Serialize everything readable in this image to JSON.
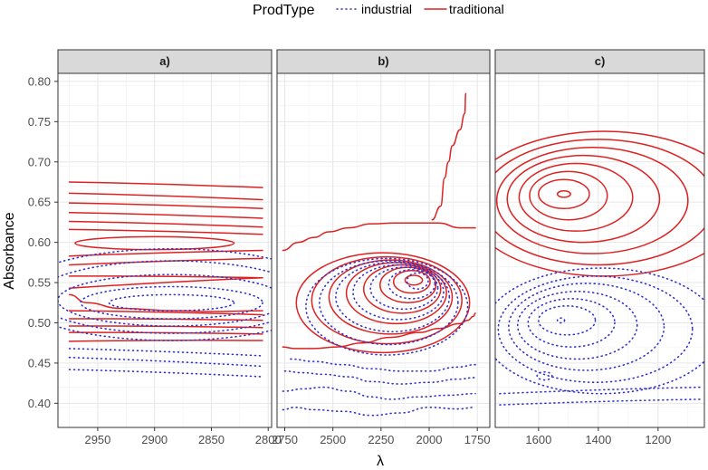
{
  "chart_data": {
    "type": "contour",
    "legend": {
      "title": "ProdType",
      "position": "top",
      "entries": [
        {
          "label": "industrial",
          "color": "#3333cc",
          "linetype": "dotted"
        },
        {
          "label": "traditional",
          "color": "#dd2222",
          "linetype": "solid"
        }
      ]
    },
    "xlabel": "λ",
    "ylabel": "Absorbance",
    "ylim": [
      0.37,
      0.81
    ],
    "y_ticks": [
      0.4,
      0.45,
      0.5,
      0.55,
      0.6,
      0.65,
      0.7,
      0.75,
      0.8
    ],
    "y_tick_labels": [
      "0.40",
      "0.45",
      "0.50",
      "0.55",
      "0.60",
      "0.65",
      "0.70",
      "0.75",
      "0.80"
    ],
    "panels": [
      {
        "title": "a)",
        "xlim": [
          2985,
          2797
        ],
        "x_ticks": [
          2950,
          2900,
          2850,
          2800
        ],
        "x_tick_labels": [
          "2950",
          "2900",
          "2850",
          "2800"
        ],
        "series": [
          {
            "name": "traditional",
            "contours": [
              {
                "shape": "band",
                "x": [
                  2975,
                  2805
                ],
                "y": [
                  0.675,
                  0.668
                ]
              },
              {
                "shape": "band",
                "x": [
                  2975,
                  2805
                ],
                "y": [
                  0.661,
                  0.653
                ]
              },
              {
                "shape": "band",
                "x": [
                  2975,
                  2805
                ],
                "y": [
                  0.649,
                  0.642
                ]
              },
              {
                "shape": "band",
                "x": [
                  2975,
                  2805
                ],
                "y": [
                  0.637,
                  0.63
                ]
              },
              {
                "shape": "band",
                "x": [
                  2975,
                  2805
                ],
                "y": [
                  0.626,
                  0.619
                ]
              },
              {
                "shape": "band",
                "x": [
                  2975,
                  2805
                ],
                "y": [
                  0.616,
                  0.61
                ]
              },
              {
                "shape": "band",
                "x": [
                  2975,
                  2805
                ],
                "y": [
                  0.583,
                  0.59
                ]
              },
              {
                "shape": "band",
                "x": [
                  2975,
                  2805
                ],
                "y": [
                  0.572,
                  0.58
                ]
              },
              {
                "shape": "band",
                "x": [
                  2975,
                  2805
                ],
                "y": [
                  0.558,
                  0.556
                ]
              },
              {
                "shape": "band",
                "x": [
                  2975,
                  2805
                ],
                "y": [
                  0.543,
                  0.556
                ]
              },
              {
                "shape": "band",
                "x": [
                  2975,
                  2805
                ],
                "y": [
                  0.515,
                  0.51
                ]
              },
              {
                "shape": "band",
                "x": [
                  2975,
                  2805
                ],
                "y": [
                  0.505,
                  0.503
                ]
              },
              {
                "shape": "band",
                "x": [
                  2975,
                  2805
                ],
                "y": [
                  0.496,
                  0.494
                ]
              },
              {
                "shape": "band",
                "x": [
                  2975,
                  2805
                ],
                "y": [
                  0.488,
                  0.486
                ]
              },
              {
                "shape": "band",
                "x": [
                  2975,
                  2805
                ],
                "y": [
                  0.477,
                  0.478
                ]
              },
              {
                "shape": "ring",
                "cx": 2900,
                "cy": 0.599,
                "rx": 70,
                "ry": 0.008
              },
              {
                "shape": "curve",
                "x": [
                  2975,
                  2960,
                  2930,
                  2880,
                  2850,
                  2805
                ],
                "y": [
                  0.535,
                  0.525,
                  0.518,
                  0.515,
                  0.514,
                  0.515
                ]
              }
            ]
          },
          {
            "name": "industrial",
            "contours": [
              {
                "shape": "band",
                "x": [
                  2975,
                  2805
                ],
                "y": [
                  0.442,
                  0.433
                ]
              },
              {
                "shape": "band",
                "x": [
                  2975,
                  2805
                ],
                "y": [
                  0.457,
                  0.446
                ]
              },
              {
                "shape": "band",
                "x": [
                  2975,
                  2805
                ],
                "y": [
                  0.468,
                  0.459
                ]
              },
              {
                "shape": "ring",
                "cx": 2885,
                "cy": 0.525,
                "rx": 55,
                "ry": 0.01
              },
              {
                "shape": "ring",
                "cx": 2885,
                "cy": 0.525,
                "rx": 80,
                "ry": 0.02
              },
              {
                "shape": "ring",
                "cx": 2885,
                "cy": 0.528,
                "rx": 100,
                "ry": 0.032
              },
              {
                "shape": "ring",
                "cx": 2885,
                "cy": 0.532,
                "rx": 120,
                "ry": 0.045
              },
              {
                "shape": "ring",
                "cx": 2885,
                "cy": 0.535,
                "rx": 140,
                "ry": 0.057
              }
            ]
          }
        ]
      },
      {
        "title": "b)",
        "xlim": [
          2790,
          1685
        ],
        "x_ticks": [
          2750,
          2500,
          2250,
          2000,
          1750
        ],
        "x_tick_labels": [
          "2750",
          "2500",
          "2250",
          "2000",
          "1750"
        ],
        "series": [
          {
            "name": "traditional",
            "contours": [
              {
                "shape": "ring",
                "cx": 2080,
                "cy": 0.553,
                "rx": 45,
                "ry": 0.006
              },
              {
                "shape": "ring",
                "cx": 2090,
                "cy": 0.551,
                "rx": 95,
                "ry": 0.014
              },
              {
                "shape": "ring",
                "cx": 2110,
                "cy": 0.547,
                "rx": 145,
                "ry": 0.022
              },
              {
                "shape": "ring",
                "cx": 2140,
                "cy": 0.542,
                "rx": 200,
                "ry": 0.03
              },
              {
                "shape": "ring",
                "cx": 2170,
                "cy": 0.537,
                "rx": 260,
                "ry": 0.038
              },
              {
                "shape": "ring",
                "cx": 2200,
                "cy": 0.532,
                "rx": 320,
                "ry": 0.046
              },
              {
                "shape": "ring",
                "cx": 2220,
                "cy": 0.528,
                "rx": 390,
                "ry": 0.054
              },
              {
                "shape": "ring",
                "cx": 2240,
                "cy": 0.525,
                "rx": 450,
                "ry": 0.062
              },
              {
                "shape": "open",
                "x": [
                  2760,
                  2700,
                  2600,
                  2480,
                  2350,
                  2200,
                  2050,
                  1950,
                  1840,
                  1800,
                  1770,
                  1760
                ],
                "y": [
                  0.47,
                  0.468,
                  0.468,
                  0.47,
                  0.475,
                  0.482,
                  0.488,
                  0.493,
                  0.499,
                  0.503,
                  0.508,
                  0.512
                ]
              },
              {
                "shape": "open",
                "x": [
                  2760,
                  2680,
                  2600,
                  2520,
                  2420,
                  2300,
                  2180,
                  2050,
                  1950,
                  1840,
                  1760
                ],
                "y": [
                  0.59,
                  0.6,
                  0.606,
                  0.613,
                  0.618,
                  0.623,
                  0.624,
                  0.624,
                  0.624,
                  0.618,
                  0.618
                ]
              },
              {
                "shape": "open",
                "x": [
                  1985,
                  1940,
                  1920,
                  1900,
                  1880,
                  1840,
                  1815,
                  1810
                ],
                "y": [
                  0.628,
                  0.645,
                  0.68,
                  0.7,
                  0.72,
                  0.74,
                  0.76,
                  0.785
                ]
              }
            ]
          },
          {
            "name": "industrial",
            "contours": [
              {
                "shape": "open",
                "x": [
                  2760,
                  2700,
                  2600,
                  2450,
                  2300,
                  2150,
                  2000,
                  1850,
                  1760
                ],
                "y": [
                  0.392,
                  0.395,
                  0.392,
                  0.39,
                  0.385,
                  0.388,
                  0.395,
                  0.393,
                  0.395
                ]
              },
              {
                "shape": "open",
                "x": [
                  2760,
                  2650,
                  2550,
                  2420,
                  2300,
                  2200,
                  2050,
                  1900,
                  1760
                ],
                "y": [
                  0.415,
                  0.418,
                  0.42,
                  0.415,
                  0.408,
                  0.405,
                  0.408,
                  0.41,
                  0.412
                ]
              },
              {
                "shape": "open",
                "x": [
                  2750,
                  2660,
                  2550,
                  2420,
                  2300,
                  2150,
                  2000,
                  1850,
                  1760
                ],
                "y": [
                  0.44,
                  0.438,
                  0.436,
                  0.433,
                  0.427,
                  0.424,
                  0.426,
                  0.43,
                  0.432
                ]
              },
              {
                "shape": "open",
                "x": [
                  2720,
                  2600,
                  2450,
                  2300,
                  2150,
                  2000,
                  1850,
                  1760
                ],
                "y": [
                  0.455,
                  0.452,
                  0.448,
                  0.443,
                  0.44,
                  0.44,
                  0.445,
                  0.448
                ]
              },
              {
                "shape": "ring",
                "cx": 2060,
                "cy": 0.552,
                "rx": 55,
                "ry": 0.01
              },
              {
                "shape": "ring",
                "cx": 2090,
                "cy": 0.548,
                "rx": 120,
                "ry": 0.018
              },
              {
                "shape": "ring",
                "cx": 2130,
                "cy": 0.543,
                "rx": 175,
                "ry": 0.026
              },
              {
                "shape": "ring",
                "cx": 2160,
                "cy": 0.538,
                "rx": 235,
                "ry": 0.034
              },
              {
                "shape": "ring",
                "cx": 2190,
                "cy": 0.532,
                "rx": 295,
                "ry": 0.043
              },
              {
                "shape": "ring",
                "cx": 2210,
                "cy": 0.525,
                "rx": 360,
                "ry": 0.052
              },
              {
                "shape": "ring",
                "cx": 2220,
                "cy": 0.52,
                "rx": 420,
                "ry": 0.06
              }
            ]
          }
        ]
      },
      {
        "title": "c)",
        "xlim": [
          1745,
          1045
        ],
        "x_ticks": [
          1600,
          1400,
          1200
        ],
        "x_tick_labels": [
          "1600",
          "1400",
          "1200"
        ],
        "series": [
          {
            "name": "traditional",
            "contours": [
              {
                "shape": "ring",
                "cx": 1515,
                "cy": 0.66,
                "rx": 22,
                "ry": 0.004
              },
              {
                "shape": "ring",
                "cx": 1515,
                "cy": 0.66,
                "rx": 85,
                "ry": 0.018
              },
              {
                "shape": "ring",
                "cx": 1500,
                "cy": 0.658,
                "rx": 130,
                "ry": 0.03
              },
              {
                "shape": "ring",
                "cx": 1475,
                "cy": 0.656,
                "rx": 190,
                "ry": 0.042
              },
              {
                "shape": "ring",
                "cx": 1450,
                "cy": 0.654,
                "rx": 255,
                "ry": 0.054
              },
              {
                "shape": "ring",
                "cx": 1420,
                "cy": 0.652,
                "rx": 320,
                "ry": 0.066
              },
              {
                "shape": "ring",
                "cx": 1400,
                "cy": 0.65,
                "rx": 390,
                "ry": 0.078
              },
              {
                "shape": "ring",
                "cx": 1380,
                "cy": 0.648,
                "rx": 460,
                "ry": 0.09
              }
            ]
          },
          {
            "name": "industrial",
            "contours": [
              {
                "shape": "ring",
                "cx": 1525,
                "cy": 0.503,
                "rx": 12,
                "ry": 0.003
              },
              {
                "shape": "ring",
                "cx": 1580,
                "cy": 0.434,
                "rx": 25,
                "ry": 0.005
              },
              {
                "shape": "ring",
                "cx": 1505,
                "cy": 0.503,
                "rx": 95,
                "ry": 0.018
              },
              {
                "shape": "ring",
                "cx": 1490,
                "cy": 0.5,
                "rx": 145,
                "ry": 0.03
              },
              {
                "shape": "ring",
                "cx": 1470,
                "cy": 0.497,
                "rx": 200,
                "ry": 0.042
              },
              {
                "shape": "ring",
                "cx": 1440,
                "cy": 0.495,
                "rx": 260,
                "ry": 0.054
              },
              {
                "shape": "ring",
                "cx": 1410,
                "cy": 0.492,
                "rx": 325,
                "ry": 0.066
              },
              {
                "shape": "ring",
                "cx": 1390,
                "cy": 0.49,
                "rx": 395,
                "ry": 0.078
              },
              {
                "shape": "band",
                "x": [
                  1730,
                  1060
                ],
                "y": [
                  0.412,
                  0.42
                ]
              },
              {
                "shape": "band",
                "x": [
                  1730,
                  1060
                ],
                "y": [
                  0.398,
                  0.405
                ]
              }
            ]
          }
        ]
      }
    ]
  }
}
